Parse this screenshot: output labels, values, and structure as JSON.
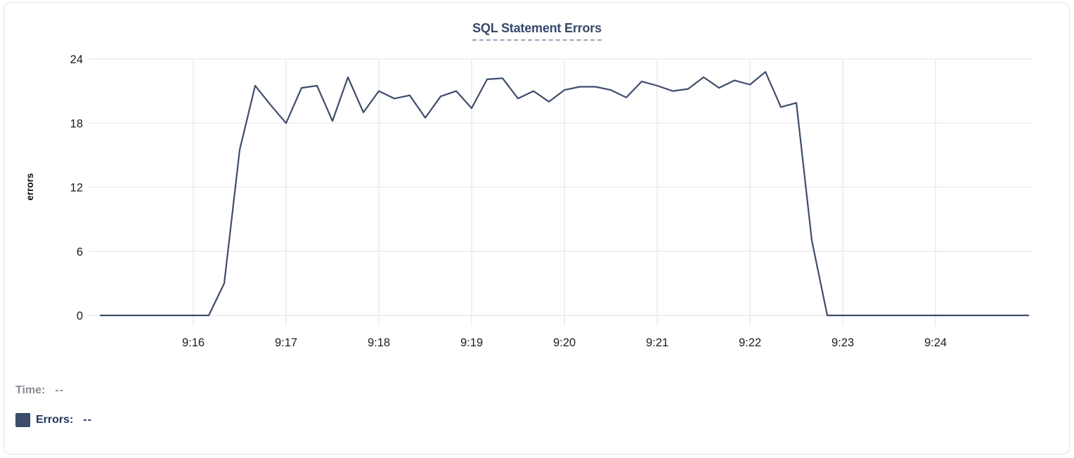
{
  "chart_data": {
    "type": "line",
    "title": "SQL Statement Errors",
    "xlabel": "",
    "ylabel": "errors",
    "ylim": [
      0,
      24
    ],
    "y_ticks": [
      0,
      6,
      12,
      18,
      24
    ],
    "x_tick_labels": [
      "9:16",
      "9:17",
      "9:18",
      "9:19",
      "9:20",
      "9:21",
      "9:22",
      "9:23",
      "9:24"
    ],
    "x_domain": {
      "start": "9:15:00",
      "end": "9:25:00",
      "seconds": 600
    },
    "sample_interval_seconds": 10,
    "grid": true,
    "legend_position": "bottom-left",
    "series": [
      {
        "name": "Errors",
        "color": "#3e4d6a",
        "values": [
          0,
          0,
          0,
          0,
          0,
          0,
          0,
          0,
          3,
          15.5,
          21.5,
          19.7,
          18,
          21.3,
          21.5,
          18.2,
          22.3,
          19,
          21,
          20.3,
          20.6,
          18.5,
          20.5,
          21,
          19.4,
          22.1,
          22.2,
          20.3,
          21,
          20,
          21.1,
          21.4,
          21.4,
          21.1,
          20.4,
          21.9,
          21.5,
          21,
          21.2,
          22.3,
          21.3,
          22,
          21.6,
          22.8,
          19.5,
          19.9,
          7,
          0,
          0,
          0,
          0,
          0,
          0,
          0,
          0,
          0,
          0,
          0,
          0,
          0,
          0
        ]
      }
    ]
  },
  "readout": {
    "time_label": "Time:",
    "time_value": "--",
    "errors_label": "Errors:",
    "errors_value": "--"
  },
  "colors": {
    "series": "#3e4d6a",
    "grid": "#ececef",
    "axis_text": "#1b1c1e",
    "title": "#36486b",
    "title_underline": "#98a4bb",
    "time_text": "#888d94",
    "errors_text": "#22345a",
    "swatch": "#3d4e6a",
    "card_border": "#e0e3e6"
  }
}
